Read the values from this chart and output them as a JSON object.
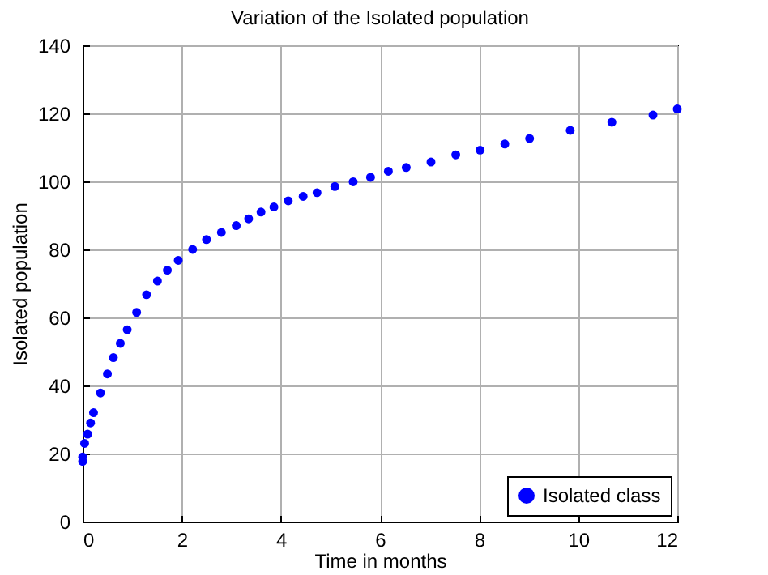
{
  "chart_data": {
    "type": "scatter",
    "title": "Variation of the Isolated population",
    "xlabel": "Time in months",
    "ylabel": "Isolated population",
    "xlim": [
      0,
      12
    ],
    "xticks": [
      0,
      2,
      4,
      6,
      8,
      10,
      12
    ],
    "ylim": [
      0,
      140
    ],
    "yticks": [
      0,
      20,
      40,
      60,
      80,
      100,
      120,
      140
    ],
    "grid": true,
    "legend": "bottom right",
    "marker": "circle",
    "x": [
      0,
      0,
      0.04,
      0.1,
      0.16,
      0.22,
      0.36,
      0.5,
      0.62,
      0.76,
      0.9,
      1.09,
      1.29,
      1.51,
      1.71,
      1.93,
      2.22,
      2.5,
      2.8,
      3.1,
      3.35,
      3.6,
      3.86,
      4.15,
      4.45,
      4.73,
      5.09,
      5.46,
      5.81,
      6.17,
      6.53,
      7.03,
      7.53,
      8.02,
      8.52,
      9.02,
      9.84,
      10.68,
      11.51,
      12
    ],
    "series": [
      {
        "name": "Isolated class",
        "color": "#0000ff",
        "values": [
          17.7,
          19,
          23,
          25.7,
          29,
          32,
          37.8,
          43.4,
          48.2,
          52.4,
          56.4,
          61.5,
          66.7,
          70.7,
          73.9,
          76.8,
          80,
          82.9,
          85,
          87,
          89,
          91,
          92.5,
          94.3,
          95.6,
          96.7,
          98.5,
          99.9,
          101.2,
          103,
          104.1,
          105.7,
          107.8,
          109.2,
          111,
          112.6,
          115,
          117.4,
          119.5,
          121.3
        ]
      }
    ]
  }
}
